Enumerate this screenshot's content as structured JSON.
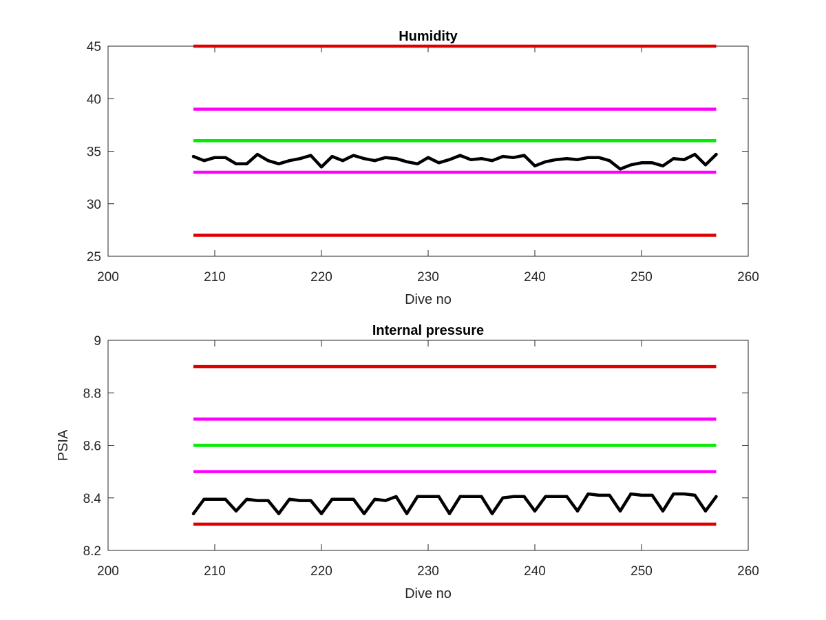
{
  "chart_data": [
    {
      "type": "line",
      "title": "Humidity",
      "xlabel": "Dive no",
      "ylabel": "",
      "xlim": [
        200,
        260
      ],
      "ylim": [
        25,
        45
      ],
      "xticks": [
        "200",
        "210",
        "220",
        "230",
        "240",
        "250",
        "260"
      ],
      "yticks": [
        "25",
        "30",
        "35",
        "40",
        "45"
      ],
      "grid": false,
      "thresholds": [
        {
          "color": "#dd0000",
          "y": 45,
          "x": [
            208,
            257
          ]
        },
        {
          "color": "#ff00ff",
          "y": 39,
          "x": [
            208,
            257
          ]
        },
        {
          "color": "#00ee00",
          "y": 36,
          "x": [
            208,
            257
          ]
        },
        {
          "color": "#ff00ff",
          "y": 33,
          "x": [
            208,
            257
          ]
        },
        {
          "color": "#dd0000",
          "y": 27,
          "x": [
            208,
            257
          ]
        }
      ],
      "series": [
        {
          "color": "#000000",
          "x": [
            208,
            209,
            210,
            211,
            212,
            213,
            214,
            215,
            216,
            217,
            218,
            219,
            220,
            221,
            222,
            223,
            224,
            225,
            226,
            227,
            228,
            229,
            230,
            231,
            232,
            233,
            234,
            235,
            236,
            237,
            238,
            239,
            240,
            241,
            242,
            243,
            244,
            245,
            246,
            247,
            248,
            249,
            250,
            251,
            252,
            253,
            254,
            255,
            256,
            257
          ],
          "values": [
            34.5,
            34.1,
            34.4,
            34.4,
            33.8,
            33.8,
            34.7,
            34.1,
            33.8,
            34.1,
            34.3,
            34.6,
            33.5,
            34.5,
            34.1,
            34.6,
            34.3,
            34.1,
            34.4,
            34.3,
            34.0,
            33.8,
            34.4,
            33.9,
            34.2,
            34.6,
            34.2,
            34.3,
            34.1,
            34.5,
            34.4,
            34.6,
            33.6,
            34.0,
            34.2,
            34.3,
            34.2,
            34.4,
            34.4,
            34.1,
            33.3,
            33.7,
            33.9,
            33.9,
            33.6,
            34.3,
            34.2,
            34.7,
            33.7,
            34.7
          ]
        }
      ]
    },
    {
      "type": "line",
      "title": "Internal pressure",
      "xlabel": "Dive no",
      "ylabel": "PSIA",
      "xlim": [
        200,
        260
      ],
      "ylim": [
        8.2,
        9
      ],
      "xticks": [
        "200",
        "210",
        "220",
        "230",
        "240",
        "250",
        "260"
      ],
      "yticks": [
        "8.2",
        "8.4",
        "8.6",
        "8.8",
        "9"
      ],
      "grid": false,
      "thresholds": [
        {
          "color": "#dd0000",
          "y": 8.9,
          "x": [
            208,
            257
          ]
        },
        {
          "color": "#ff00ff",
          "y": 8.7,
          "x": [
            208,
            257
          ]
        },
        {
          "color": "#00ee00",
          "y": 8.6,
          "x": [
            208,
            257
          ]
        },
        {
          "color": "#ff00ff",
          "y": 8.5,
          "x": [
            208,
            257
          ]
        },
        {
          "color": "#dd0000",
          "y": 8.3,
          "x": [
            208,
            257
          ]
        }
      ],
      "series": [
        {
          "color": "#000000",
          "x": [
            208,
            209,
            210,
            211,
            212,
            213,
            214,
            215,
            216,
            217,
            218,
            219,
            220,
            221,
            222,
            223,
            224,
            225,
            226,
            227,
            228,
            229,
            230,
            231,
            232,
            233,
            234,
            235,
            236,
            237,
            238,
            239,
            240,
            241,
            242,
            243,
            244,
            245,
            246,
            247,
            248,
            249,
            250,
            251,
            252,
            253,
            254,
            255,
            256,
            257
          ],
          "values": [
            8.34,
            8.395,
            8.395,
            8.395,
            8.35,
            8.395,
            8.39,
            8.39,
            8.34,
            8.395,
            8.39,
            8.39,
            8.34,
            8.395,
            8.395,
            8.395,
            8.34,
            8.395,
            8.39,
            8.405,
            8.34,
            8.405,
            8.405,
            8.405,
            8.34,
            8.405,
            8.405,
            8.405,
            8.34,
            8.4,
            8.405,
            8.405,
            8.35,
            8.405,
            8.405,
            8.405,
            8.35,
            8.415,
            8.41,
            8.41,
            8.35,
            8.415,
            8.41,
            8.41,
            8.35,
            8.415,
            8.415,
            8.41,
            8.35,
            8.405
          ]
        }
      ]
    }
  ]
}
